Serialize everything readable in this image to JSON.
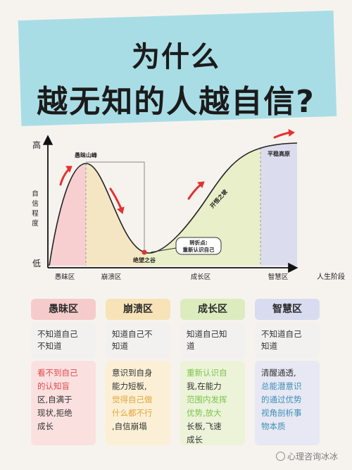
{
  "title": {
    "line1": "为什么",
    "line2": "越无知的人越自信?"
  },
  "chart": {
    "y_top": "高",
    "y_bottom": "低",
    "y_axis_label": [
      "自",
      "信",
      "程",
      "度"
    ],
    "x_axis_label": "人生阶段",
    "x_ticks": [
      "愚昧区",
      "崩溃区",
      "成长区",
      "智慧区"
    ],
    "annotations": {
      "peak": "愚昧山峰",
      "valley": "绝望之谷",
      "slope": "开悟之坡",
      "plateau": "平稳高原",
      "turning_point_1": "转折点:",
      "turning_point_2": "重新认识自己"
    },
    "colors": {
      "zone1": "#f7cfd0",
      "zone2": "#f5e6c3",
      "zone3": "#e9efc8",
      "zone4": "#dcdcef",
      "arrow": "#e33131"
    }
  },
  "zones": [
    {
      "name": "愚昧区",
      "header_color": "#f6cbcb",
      "cell_color": "#fbe0e0",
      "row1": [
        "不知道自己",
        "不知道"
      ],
      "row2": [
        "看不到自己",
        "的认知盲",
        "区,自满于",
        "现状,拒绝",
        "成长"
      ]
    },
    {
      "name": "崩溃区",
      "header_color": "#f7e3b7",
      "cell_color": "#fbf0d6",
      "row1": [
        "知道自己不",
        "知道"
      ],
      "row2": [
        "意识到自身",
        "能力短板,",
        "觉得自己做",
        "什么都不行",
        ",自信崩塌"
      ]
    },
    {
      "name": "成长区",
      "header_color": "#dcecbf",
      "cell_color": "#ecf3d9",
      "row1": [
        "知道自己知",
        "道"
      ],
      "row2": [
        "重新认识自",
        "我,在能力",
        "范围内发挥",
        "优势,放大",
        "长板,飞速",
        "成长"
      ]
    },
    {
      "name": "智慧区",
      "header_color": "#d9dcf0",
      "cell_color": "#e7e8f4",
      "row1": [
        "不知道自己",
        "知道"
      ],
      "row2": [
        "清醒通透,",
        "总能潜意识",
        "的通过优势",
        "视角剖析事",
        "物本质"
      ]
    },
    {
      "_": ""
    }
  ],
  "watermark": "心理咨询冰冰"
}
